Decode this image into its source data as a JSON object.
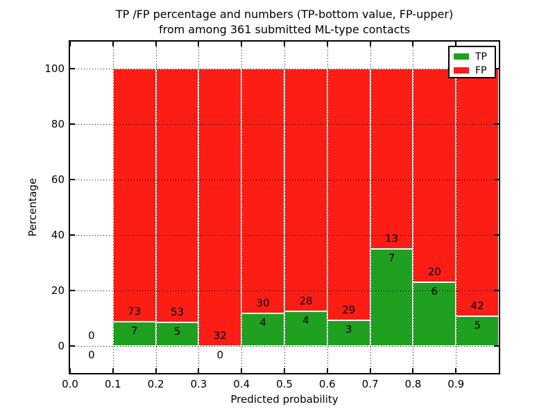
{
  "title": {
    "line1": "TP /FP percentage and numbers (TP-bottom value, FP-upper)",
    "line2": "from among 361 submitted ML-type contacts"
  },
  "axes": {
    "x_label": "Predicted probability",
    "y_label": "Percentage",
    "x_ticks": [
      "0.0",
      "0.1",
      "0.2",
      "0.3",
      "0.4",
      "0.5",
      "0.6",
      "0.7",
      "0.8",
      "0.9"
    ],
    "y_ticks": [
      "0",
      "20",
      "40",
      "60",
      "80",
      "100"
    ]
  },
  "legend": {
    "position": "upper right",
    "items": [
      {
        "label": "TP",
        "color": "#20a020"
      },
      {
        "label": "FP",
        "color": "#fc1d15"
      }
    ]
  },
  "chart_data": {
    "type": "bar",
    "stacked": true,
    "normalized_to_percent": true,
    "title": "TP /FP percentage and numbers (TP-bottom value, FP-upper) from among 361 submitted ML-type contacts",
    "xlabel": "Predicted probability",
    "ylabel": "Percentage",
    "xlim": [
      0.0,
      1.0
    ],
    "ylim": [
      -10,
      110
    ],
    "grid": "dotted",
    "legend_position": "upper right",
    "total_contacts": 361,
    "bin_width": 0.1,
    "bin_starts": [
      0.0,
      0.1,
      0.2,
      0.3,
      0.4,
      0.5,
      0.6,
      0.7,
      0.8,
      0.9
    ],
    "series": [
      {
        "name": "TP",
        "color": "#20a020",
        "values": [
          0,
          7,
          5,
          0,
          4,
          4,
          3,
          7,
          6,
          5
        ]
      },
      {
        "name": "FP",
        "color": "#fc1d15",
        "values": [
          0,
          73,
          53,
          32,
          30,
          28,
          29,
          13,
          20,
          42
        ]
      }
    ],
    "tp_percent_by_bin": [
      null,
      8.75,
      8.62,
      0.0,
      11.76,
      12.5,
      9.38,
      35.0,
      23.08,
      10.64
    ],
    "colors": {
      "tp": "#20a020",
      "fp": "#fc1d15"
    }
  }
}
